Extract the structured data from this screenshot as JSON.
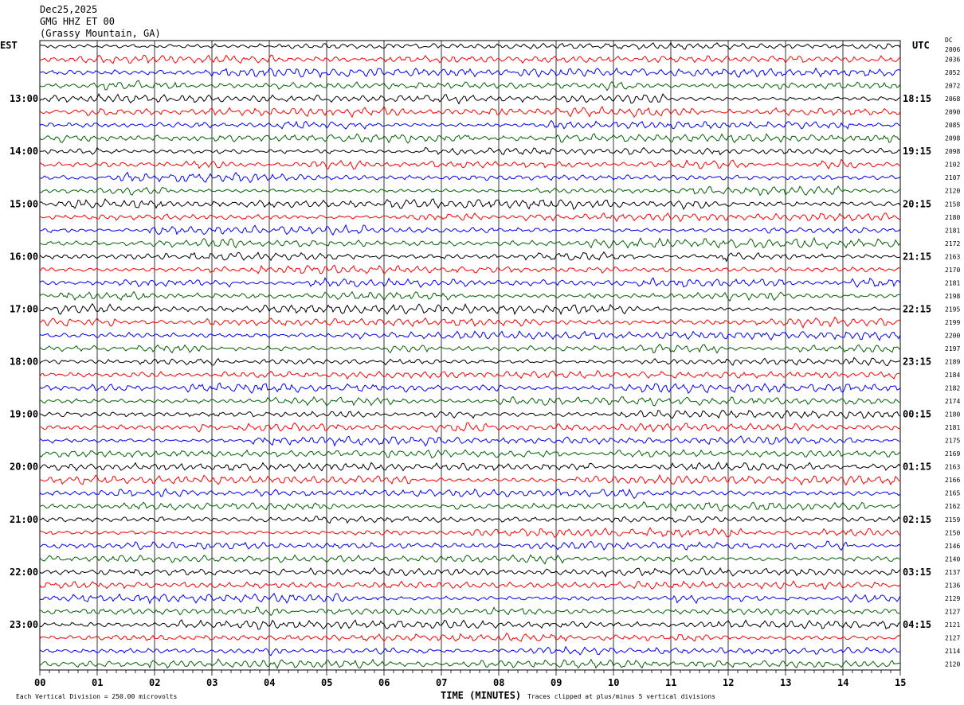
{
  "header": {
    "date": "Dec25,2025",
    "station": "GMG HHZ ET 00",
    "location": "(Grassy Mountain, GA)"
  },
  "left_axis_label": "EST",
  "right_axis_label": "UTC",
  "dc_label": "DC",
  "footer": {
    "scale": "Each Vertical Division =  250.00 microvolts",
    "xlabel": "TIME (MINUTES)",
    "clip_note": "Traces clipped at plus/minus 5 vertical divisions"
  },
  "chart_data": {
    "type": "line",
    "xlabel": "TIME (MINUTES)",
    "xlim": [
      0,
      15
    ],
    "x_ticks": [
      "00",
      "01",
      "02",
      "03",
      "04",
      "05",
      "06",
      "07",
      "08",
      "09",
      "10",
      "11",
      "12",
      "13",
      "14",
      "15"
    ],
    "grid": true,
    "trace_colors": [
      "#000000",
      "#ff0000",
      "#0000ff",
      "#006400"
    ],
    "est_labels": [
      "",
      "13:00",
      "14:00",
      "15:00",
      "16:00",
      "17:00",
      "18:00",
      "19:00",
      "20:00",
      "21:00",
      "22:00",
      "23:00"
    ],
    "utc_labels": [
      "",
      "18:15",
      "19:15",
      "20:15",
      "21:15",
      "22:15",
      "23:15",
      "00:15",
      "01:15",
      "02:15",
      "03:15",
      "04:15"
    ],
    "dc_offsets": [
      "2006",
      "2036",
      "2052",
      "2072",
      "2068",
      "2090",
      "2085",
      "2098",
      "2098",
      "2102",
      "2107",
      "2120",
      "2158",
      "2180",
      "2181",
      "2172",
      "2163",
      "2170",
      "2181",
      "2198",
      "2195",
      "2199",
      "2200",
      "2197",
      "2189",
      "2184",
      "2182",
      "2174",
      "2180",
      "2181",
      "2175",
      "2169",
      "2163",
      "2166",
      "2165",
      "2162",
      "2159",
      "2150",
      "2146",
      "2140",
      "2137",
      "2136",
      "2129",
      "2127",
      "2121",
      "2127",
      "2114",
      "2120"
    ]
  }
}
